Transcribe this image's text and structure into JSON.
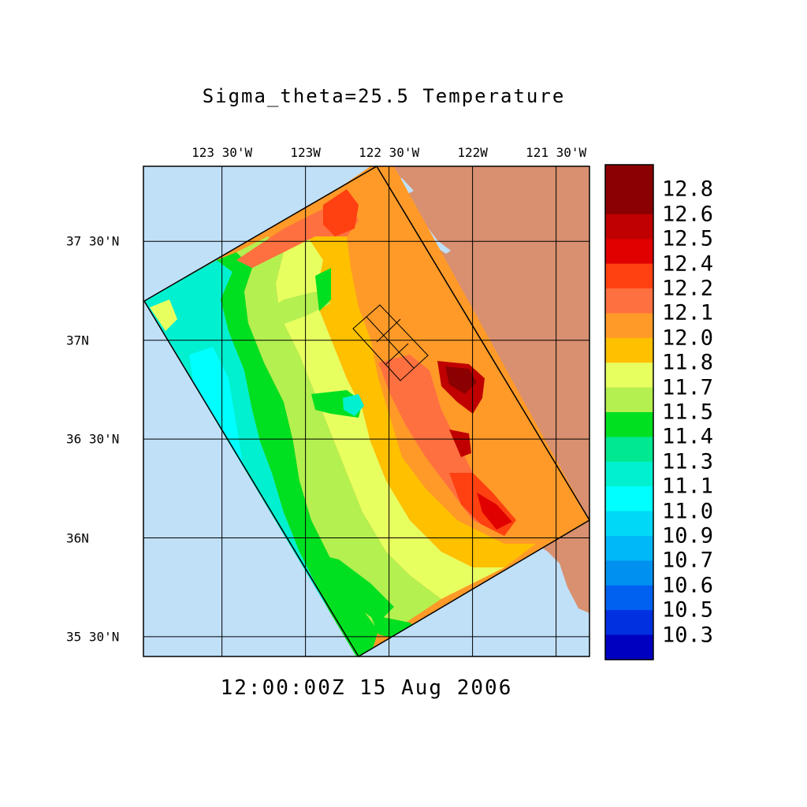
{
  "title": "Sigma_theta=25.5 Temperature",
  "timestamp": "12:00:00Z  15 Aug 2006",
  "longitude_labels": [
    {
      "text": "123 30'W",
      "lon": -123.5
    },
    {
      "text": "123W",
      "lon": -123.0
    },
    {
      "text": "122 30'W",
      "lon": -122.5
    },
    {
      "text": "122W",
      "lon": -122.0
    },
    {
      "text": "121 30'W",
      "lon": -121.5
    }
  ],
  "latitude_labels": [
    {
      "text": "37 30'N",
      "lat": 37.5
    },
    {
      "text": "37N",
      "lat": 37.0
    },
    {
      "text": "36 30'N",
      "lat": 36.5
    },
    {
      "text": "36N",
      "lat": 36.0
    },
    {
      "text": "35 30'N",
      "lat": 35.5
    }
  ],
  "map_extent": {
    "lon_min": -123.97,
    "lon_max": -121.3,
    "lat_min": 35.4,
    "lat_max": 37.88
  },
  "colorbar": {
    "labels": [
      "12.8",
      "12.6",
      "12.5",
      "12.4",
      "12.2",
      "12.1",
      "12.0",
      "11.8",
      "11.7",
      "11.5",
      "11.4",
      "11.3",
      "11.1",
      "11.0",
      "10.9",
      "10.7",
      "10.6",
      "10.5",
      "10.3"
    ],
    "colors_top_to_bottom": [
      "#8b0000",
      "#c00000",
      "#e00000",
      "#ff4010",
      "#ff7040",
      "#ff9a28",
      "#ffc000",
      "#e8ff60",
      "#b4f050",
      "#00e020",
      "#00e890",
      "#00f0d0",
      "#00ffff",
      "#00d8f8",
      "#00b8f8",
      "#0090f0",
      "#0060f0",
      "#0030e0",
      "#0000c0"
    ]
  },
  "colors": {
    "ocean": "#c0e0f8",
    "land": "#d89070",
    "grid": "#000000"
  }
}
